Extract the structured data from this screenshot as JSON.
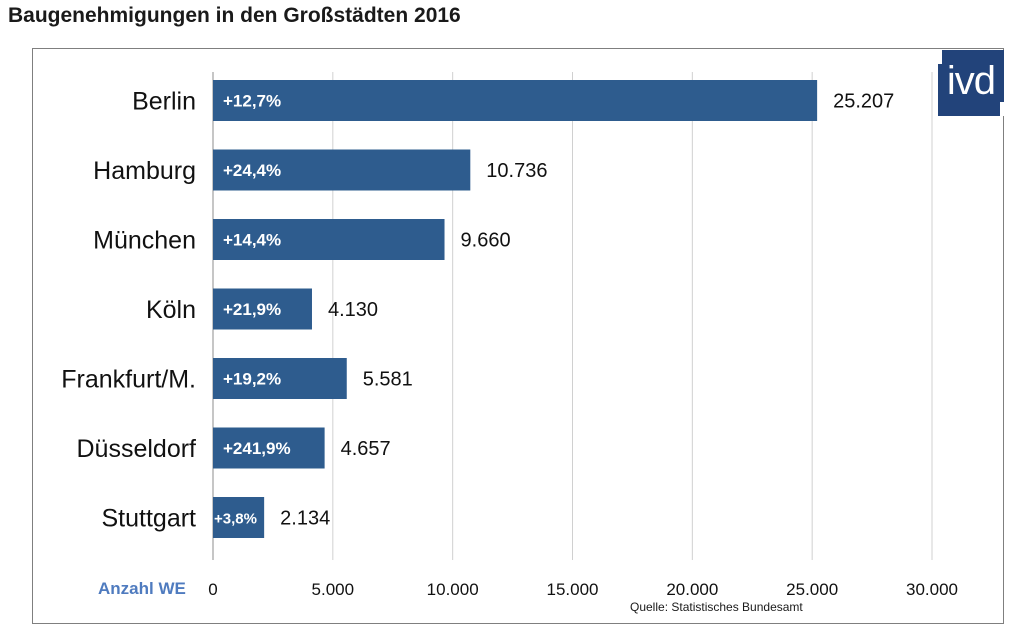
{
  "title": "Baugenehmigungen in den Großstädten 2016",
  "logo_text": "ivd",
  "source": "Quelle: Statistisches Bundesamt",
  "colors": {
    "bar": "#2e5c8e",
    "frame": "#7f7f7f",
    "unit_label": "#4f7bbf",
    "logo": "#22437a"
  },
  "chart_data": {
    "type": "bar",
    "orientation": "horizontal",
    "title": "Baugenehmigungen in den Großstädten 2016",
    "xlabel": "Anzahl WE",
    "ylabel": "",
    "categories": [
      "Berlin",
      "Hamburg",
      "München",
      "Köln",
      "Frankfurt/M.",
      "Düsseldorf",
      "Stuttgart"
    ],
    "values": [
      25207,
      10736,
      9660,
      4130,
      5581,
      4657,
      2134
    ],
    "value_labels": [
      "25.207",
      "10.736",
      "9.660",
      "4.130",
      "5.581",
      "4.657",
      "2.134"
    ],
    "change_labels": [
      "+12,7%",
      "+24,4%",
      "+14,4%",
      "+21,9%",
      "+19,2%",
      "+241,9%",
      "+3,8%"
    ],
    "xlim": [
      0,
      30000
    ],
    "xticks": [
      0,
      5000,
      10000,
      15000,
      20000,
      25000,
      30000
    ],
    "xtick_labels": [
      "0",
      "5.000",
      "10.000",
      "15.000",
      "20.000",
      "25.000",
      "30.000"
    ],
    "grid": true
  }
}
